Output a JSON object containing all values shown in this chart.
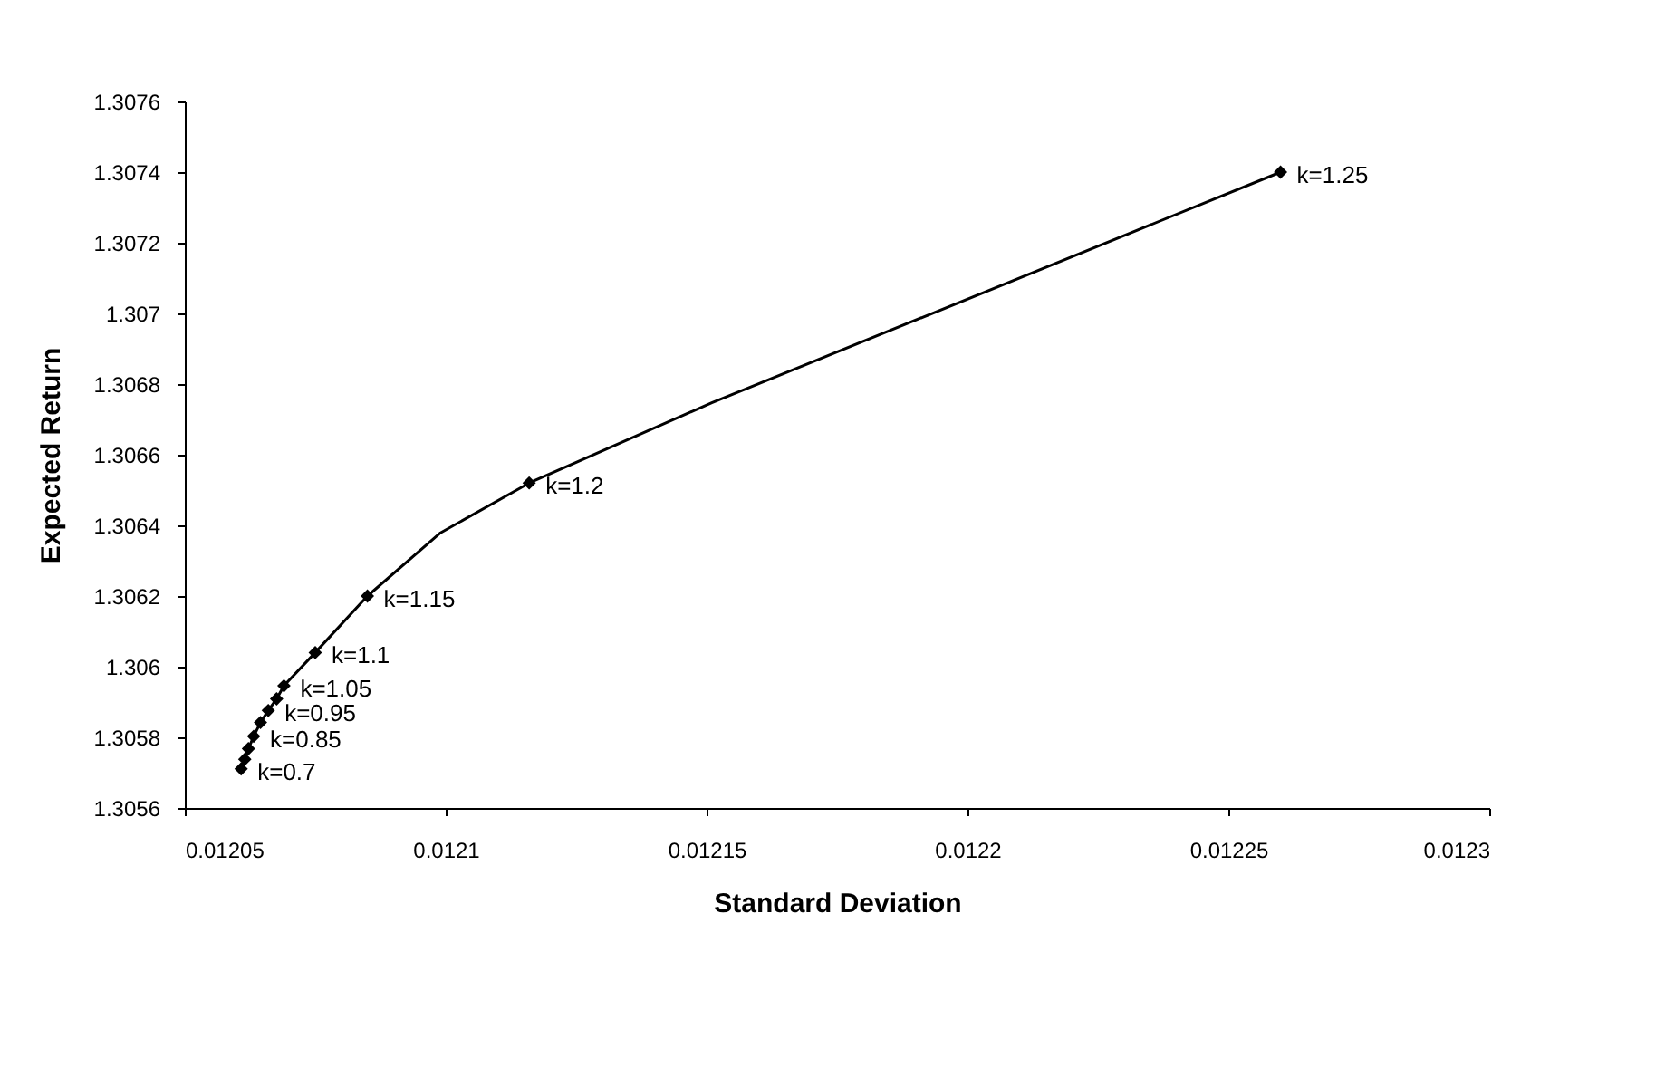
{
  "chart_data": {
    "type": "line",
    "xlabel": "Standard Deviation",
    "ylabel": "Expected Return",
    "xlim": [
      0.01205,
      0.0123
    ],
    "xticks": [
      0.01205,
      0.0121,
      0.01215,
      0.0122,
      0.01225,
      0.0123
    ],
    "ylim": [
      1.3056,
      1.3076
    ],
    "yticks": [
      1.3056,
      1.3058,
      1.306,
      1.3062,
      1.3064,
      1.3066,
      1.3068,
      1.307,
      1.3072,
      1.3074,
      1.3076
    ],
    "grid": false,
    "series": [
      {
        "type": "line",
        "marker": "none",
        "color": "#000000",
        "x": [
          0.0120608,
          0.0120615,
          0.0120622,
          0.0120632,
          0.0120645,
          0.012066,
          0.0120676,
          0.012069,
          0.012075,
          0.012085,
          0.012099,
          0.012116,
          0.012151,
          0.01226
        ],
        "values": [
          1.305711,
          1.305738,
          1.305768,
          1.305803,
          1.305842,
          1.305876,
          1.305909,
          1.305946,
          1.30604,
          1.3062,
          1.306379,
          1.30652,
          1.306747,
          1.3074
        ]
      },
      {
        "type": "scatter",
        "marker": "diamond",
        "color": "#000000",
        "x": [
          0.0120608,
          0.0120615,
          0.0120622,
          0.0120632,
          0.0120645,
          0.012066,
          0.0120676,
          0.012069,
          0.012075,
          0.012085,
          0.012116,
          0.01226
        ],
        "values": [
          1.305711,
          1.305738,
          1.305768,
          1.305803,
          1.305842,
          1.305876,
          1.305909,
          1.305946,
          1.30604,
          1.3062,
          1.30652,
          1.3074
        ]
      }
    ],
    "annotations": [
      {
        "text": "k=0.7",
        "x": 0.0120608,
        "y": 1.305711
      },
      {
        "text": "k=0.85",
        "x": 0.0120632,
        "y": 1.305803
      },
      {
        "text": "k=0.95",
        "x": 0.012066,
        "y": 1.305876
      },
      {
        "text": "k=1.05",
        "x": 0.012069,
        "y": 1.305946
      },
      {
        "text": "k=1.1",
        "x": 0.012075,
        "y": 1.30604
      },
      {
        "text": "k=1.15",
        "x": 0.012085,
        "y": 1.3062
      },
      {
        "text": "k=1.2",
        "x": 0.012116,
        "y": 1.30652
      },
      {
        "text": "k=1.25",
        "x": 0.01226,
        "y": 1.3074
      }
    ]
  }
}
